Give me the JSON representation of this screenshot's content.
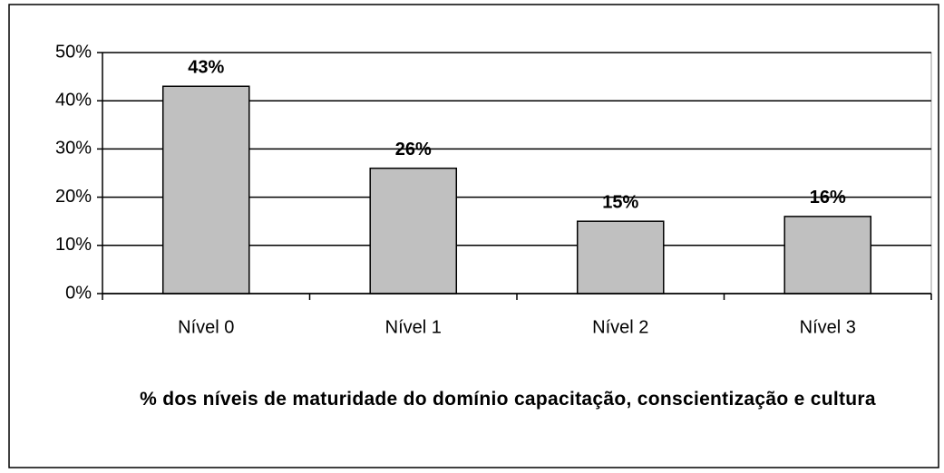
{
  "chart_data": {
    "type": "bar",
    "title": "% dos níveis de maturidade do domínio capacitação, conscientização e cultura",
    "categories": [
      "Nível 0",
      "Nível 1",
      "Nível 2",
      "Nível 3"
    ],
    "values": [
      43,
      26,
      15,
      16
    ],
    "value_labels": [
      "43%",
      "26%",
      "15%",
      "16%"
    ],
    "color": "#c0c0c0",
    "ylim": [
      0,
      50
    ],
    "yticks": [
      {
        "value": 0,
        "label": "0%"
      },
      {
        "value": 10,
        "label": "10%"
      },
      {
        "value": 20,
        "label": "20%"
      },
      {
        "value": 30,
        "label": "30%"
      },
      {
        "value": 40,
        "label": "40%"
      },
      {
        "value": 50,
        "label": "50%"
      }
    ],
    "grid": true
  }
}
